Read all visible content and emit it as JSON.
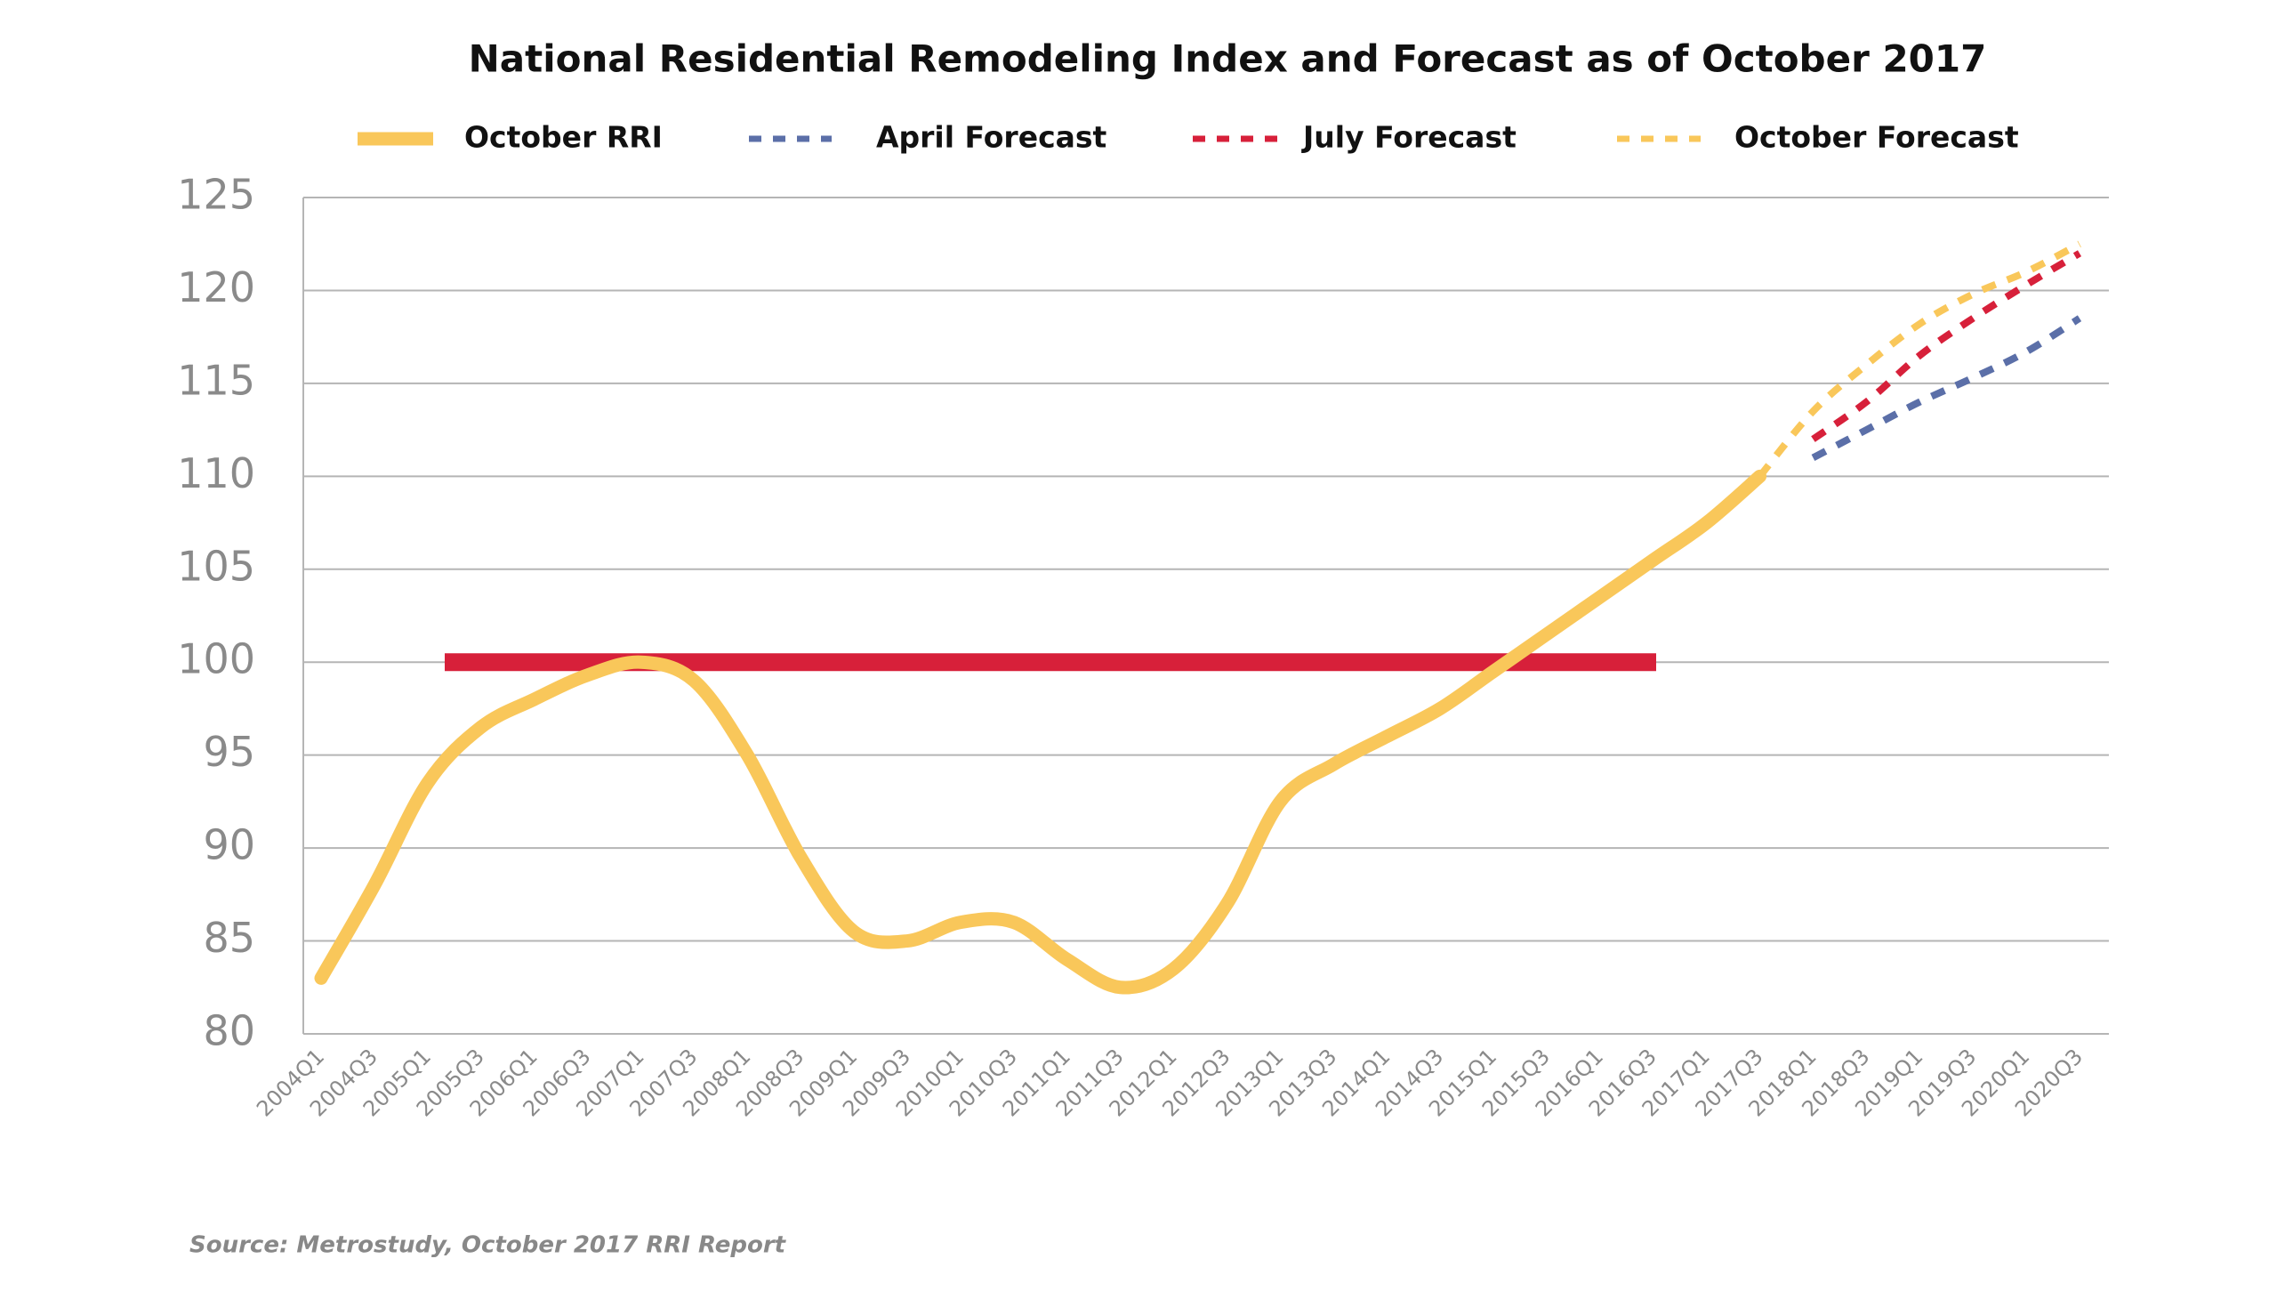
{
  "chart_data": {
    "type": "line",
    "title": "National Residential Remodeling Index and Forecast as of October 2017",
    "source": "Source: Metrostudy, October 2017 RRI Report",
    "categories": [
      "2004Q1",
      "2004Q3",
      "2005Q1",
      "2005Q3",
      "2006Q1",
      "2006Q3",
      "2007Q1",
      "2007Q3",
      "2008Q1",
      "2008Q3",
      "2009Q1",
      "2009Q3",
      "2010Q1",
      "2010Q3",
      "2011Q1",
      "2011Q3",
      "2012Q1",
      "2012Q3",
      "2013Q1",
      "2013Q3",
      "2014Q1",
      "2014Q3",
      "2015Q1",
      "2015Q3",
      "2016Q1",
      "2016Q3",
      "2017Q1",
      "2017Q3",
      "2018Q1",
      "2018Q3",
      "2019Q1",
      "2019Q3",
      "2020Q1",
      "2020Q3"
    ],
    "series": [
      {
        "name": "October RRI",
        "color": "#f9c75a",
        "dashed": false,
        "values": [
          83,
          88,
          93.5,
          96.5,
          98,
          99.3,
          100,
          99,
          95,
          89.5,
          85.5,
          85,
          86,
          86,
          84,
          82.5,
          83.5,
          87,
          92.5,
          94.5,
          96,
          97.5,
          99.5,
          101.5,
          103.5,
          105.5,
          107.5,
          110,
          null,
          null,
          null,
          null,
          null,
          null
        ]
      },
      {
        "name": "April Forecast",
        "color": "#5b6fa8",
        "dashed": true,
        "values": [
          null,
          null,
          null,
          null,
          null,
          null,
          null,
          null,
          null,
          null,
          null,
          null,
          null,
          null,
          null,
          null,
          null,
          null,
          null,
          null,
          null,
          null,
          null,
          null,
          null,
          null,
          null,
          null,
          111,
          112.5,
          114,
          115.3,
          116.7,
          118.5
        ]
      },
      {
        "name": "July Forecast",
        "color": "#d7203a",
        "dashed": true,
        "values": [
          null,
          null,
          null,
          null,
          null,
          null,
          null,
          null,
          null,
          null,
          null,
          null,
          null,
          null,
          null,
          null,
          null,
          null,
          null,
          null,
          null,
          null,
          null,
          null,
          null,
          null,
          null,
          null,
          112,
          114,
          116.5,
          118.5,
          120.3,
          122
        ]
      },
      {
        "name": "October Forecast",
        "color": "#f9c75a",
        "dashed": true,
        "values": [
          null,
          null,
          null,
          null,
          null,
          null,
          null,
          null,
          null,
          null,
          null,
          null,
          null,
          null,
          null,
          null,
          null,
          null,
          null,
          null,
          null,
          null,
          null,
          null,
          null,
          null,
          null,
          110,
          113.5,
          116,
          118.2,
          119.8,
          121,
          122.5
        ]
      }
    ],
    "reference_line": {
      "value": 100,
      "color": "#d7203a"
    },
    "ylim": [
      80,
      125
    ],
    "yticks": [
      80,
      85,
      90,
      95,
      100,
      105,
      110,
      115,
      120,
      125
    ],
    "grid": true
  }
}
